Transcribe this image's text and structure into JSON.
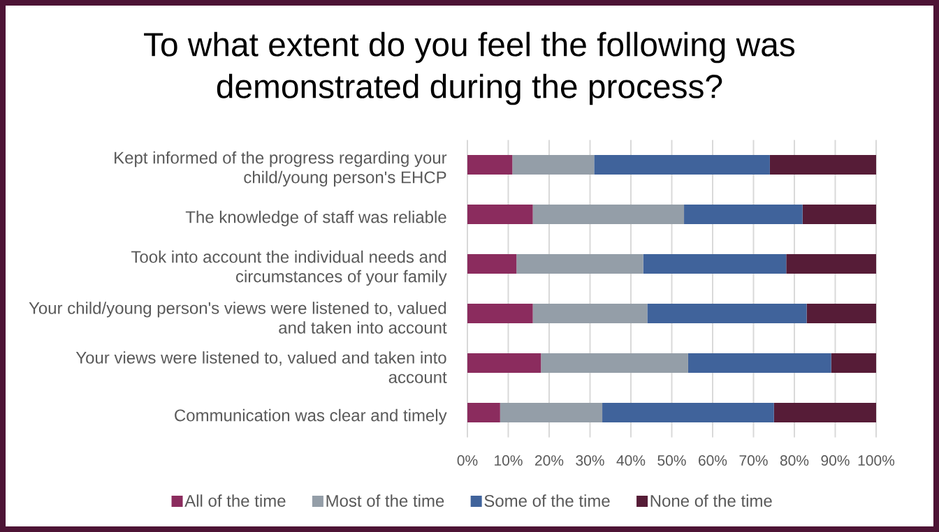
{
  "chart_data": {
    "type": "bar",
    "orientation": "horizontal",
    "stacked": true,
    "title": "To what extent do you feel the following was demonstrated during the process?",
    "categories": [
      "Kept informed of the progress regarding your child/young person's EHCP",
      "The knowledge of staff was reliable",
      "Took into account the individual needs and circumstances of your family",
      "Your child/young person's views were listened to, valued and taken into account",
      "Your views were listened to, valued and taken into account",
      "Communication was clear and timely"
    ],
    "series": [
      {
        "name": "All of the time",
        "color": "#8b2c5e",
        "values": [
          11,
          16,
          12,
          16,
          18,
          8
        ]
      },
      {
        "name": "Most of the time",
        "color": "#949ea8",
        "values": [
          20,
          37,
          31,
          28,
          36,
          25
        ]
      },
      {
        "name": "Some of the time",
        "color": "#40639b",
        "values": [
          43,
          29,
          35,
          39,
          35,
          42
        ]
      },
      {
        "name": "None of the time",
        "color": "#561c37",
        "values": [
          26,
          18,
          22,
          17,
          11,
          25
        ]
      }
    ],
    "xlim": [
      0,
      100
    ],
    "xticks": [
      {
        "value": 0,
        "label": "0%"
      },
      {
        "value": 10,
        "label": "10%"
      },
      {
        "value": 20,
        "label": "20%"
      },
      {
        "value": 30,
        "label": "30%"
      },
      {
        "value": 40,
        "label": "40%"
      },
      {
        "value": 50,
        "label": "50%"
      },
      {
        "value": 60,
        "label": "60%"
      },
      {
        "value": 70,
        "label": "70%"
      },
      {
        "value": 80,
        "label": "80%"
      },
      {
        "value": 90,
        "label": "90%"
      },
      {
        "value": 100,
        "label": "100%"
      }
    ],
    "grid": "x",
    "legend": "bottom"
  }
}
